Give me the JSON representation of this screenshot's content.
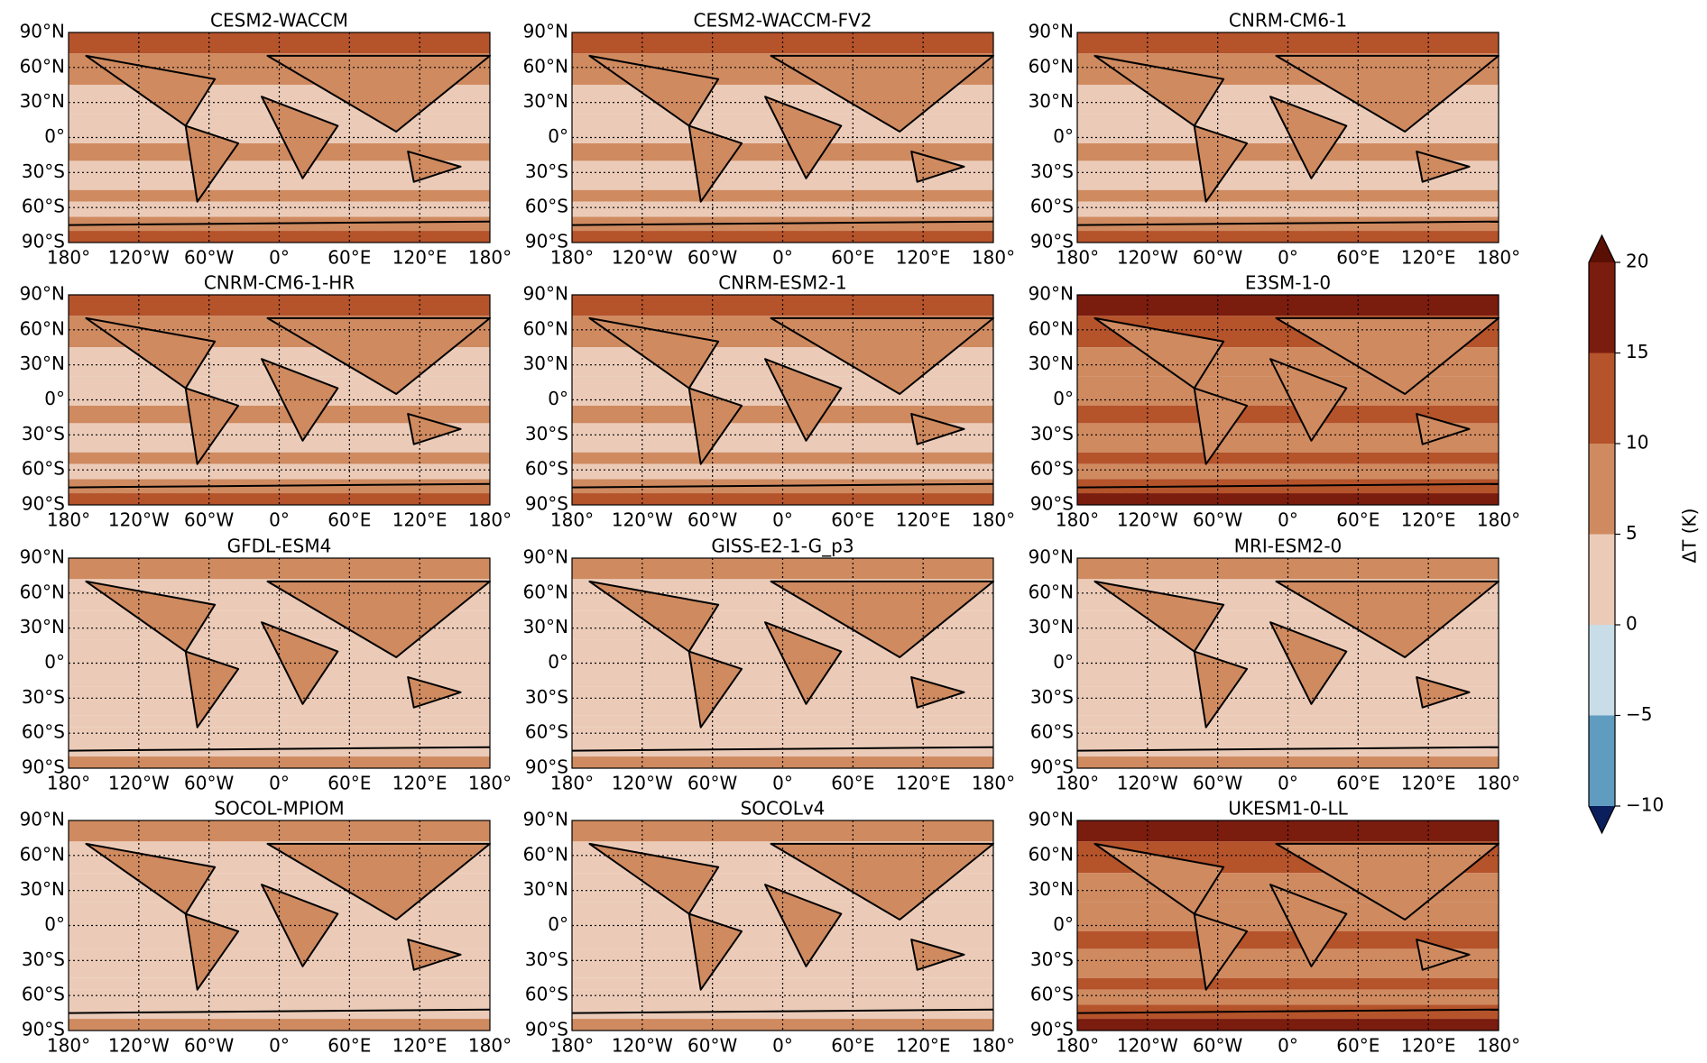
{
  "chart_data": {
    "type": "contour-map-grid",
    "panels": [
      {
        "title": "CESM2-WACCM"
      },
      {
        "title": "CESM2-WACCM-FV2"
      },
      {
        "title": "CNRM-CM6-1"
      },
      {
        "title": "CNRM-CM6-1-HR"
      },
      {
        "title": "CNRM-ESM2-1"
      },
      {
        "title": "E3SM-1-0"
      },
      {
        "title": "GFDL-ESM4"
      },
      {
        "title": "GISS-E2-1-G_p3"
      },
      {
        "title": "MRI-ESM2-0"
      },
      {
        "title": "SOCOL-MPIOM"
      },
      {
        "title": "SOCOLv4"
      },
      {
        "title": "UKESM1-0-LL"
      }
    ],
    "ylim": [
      -90,
      90
    ],
    "xlim": [
      -180,
      180
    ],
    "lat_ticks": [
      {
        "value": 90,
        "label": "90°N"
      },
      {
        "value": 60,
        "label": "60°N"
      },
      {
        "value": 30,
        "label": "30°N"
      },
      {
        "value": 0,
        "label": "0°"
      },
      {
        "value": -30,
        "label": "30°S"
      },
      {
        "value": -60,
        "label": "60°S"
      },
      {
        "value": -90,
        "label": "90°S"
      }
    ],
    "lon_ticks": [
      {
        "value": -180,
        "label": "180°"
      },
      {
        "value": -120,
        "label": "120°W"
      },
      {
        "value": -60,
        "label": "60°W"
      },
      {
        "value": 0,
        "label": "0°"
      },
      {
        "value": 60,
        "label": "60°E"
      },
      {
        "value": 120,
        "label": "120°E"
      },
      {
        "value": 180,
        "label": "180°"
      }
    ],
    "grid": true,
    "colorbar": {
      "label": "ΔT (K)",
      "ticks": [
        {
          "value": -10,
          "label": "−10"
        },
        {
          "value": -5,
          "label": "−5"
        },
        0,
        5,
        10,
        15,
        20
      ],
      "colors": [
        "#5f9cc0",
        "#c8dde7",
        "#ebcbb8",
        "#cf8a60",
        "#b5532b",
        "#7a1c0e"
      ],
      "under_color": "#0b1f5c",
      "over_color": "#5a0f05"
    }
  }
}
